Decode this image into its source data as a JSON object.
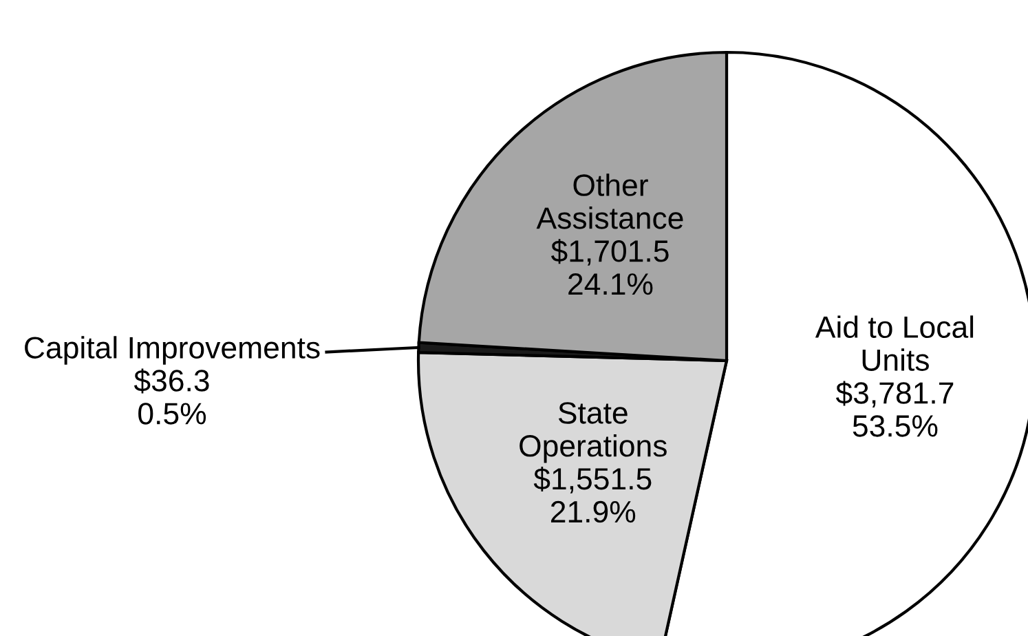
{
  "chart_data": {
    "type": "pie",
    "categories": [
      "Aid to Local\nUnits",
      "State\nOperations",
      "Capital Improvements",
      "Other\nAssistance"
    ],
    "values": [
      3781.7,
      1551.5,
      36.3,
      1701.5
    ],
    "colors": [
      "#ffffff",
      "#d9d9d9",
      "#1a1a1a",
      "#a6a6a6"
    ],
    "value_labels": [
      "$3,781.7\n53.5%",
      "$1,551.5\n21.9%",
      "$36.3\n0.5%",
      "$1,701.5\n24.1%"
    ]
  }
}
